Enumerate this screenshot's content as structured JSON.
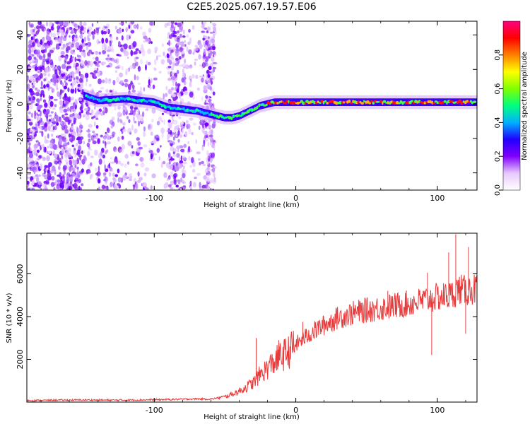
{
  "title": "C2E5.2025.067.19.57.E06",
  "colors": {
    "snr_line": "#e83a3a",
    "accent": "#7f00ff"
  },
  "chart_data": [
    {
      "type": "heatmap",
      "xlabel": "Height of straight line (km)",
      "ylabel": "Frequency (Hz)",
      "xlim": [
        -190,
        128
      ],
      "ylim": [
        -50,
        48
      ],
      "xticks": [
        -100,
        0,
        100
      ],
      "yticks": [
        -40,
        -20,
        0,
        20,
        40
      ],
      "colorbar": {
        "label": "Normalized spectral amplitude",
        "range": [
          0,
          1
        ],
        "ticks": [
          "0.0",
          "0.2",
          "0.4",
          "0.6",
          "0.8"
        ],
        "colormap": [
          "#ffffff",
          "#e7c9ff",
          "#8000ff",
          "#2000ff",
          "#00b0ff",
          "#00ff80",
          "#80ff00",
          "#ffff00",
          "#ff8000",
          "#ff0000",
          "#ff0080"
        ]
      },
      "ridge": {
        "x": [
          -150,
          -140,
          -120,
          -110,
          -100,
          -90,
          -80,
          -70,
          -60,
          -55,
          -50,
          -45,
          -40,
          -35,
          -30,
          -25,
          -20,
          -15,
          -10,
          -5,
          0,
          20,
          40,
          60,
          80,
          100,
          128
        ],
        "freq": [
          5,
          2,
          3,
          2,
          1,
          -2,
          -3,
          -4,
          -6,
          -7,
          -8,
          -8,
          -7,
          -5,
          -3,
          -1,
          0,
          1,
          1,
          1,
          1,
          1,
          1,
          1,
          1,
          1,
          1
        ]
      }
    },
    {
      "type": "line",
      "xlabel": "Height of straight line (km)",
      "ylabel": "SNR (10 * v/v)",
      "xlim": [
        -190,
        128
      ],
      "ylim": [
        0,
        7900
      ],
      "xticks": [
        -100,
        0,
        100
      ],
      "yticks": [
        2000,
        4000,
        6000
      ],
      "series": [
        {
          "x": [
            -190,
            -170,
            -150,
            -130,
            -110,
            -90,
            -70,
            -60,
            -50,
            -40,
            -30,
            -25,
            -20,
            -15,
            -10,
            -5,
            0,
            10,
            20,
            30,
            40,
            50,
            60,
            70,
            80,
            90,
            100,
            110,
            115,
            120,
            128
          ],
          "values": [
            70,
            90,
            100,
            90,
            100,
            120,
            150,
            140,
            250,
            500,
            900,
            1300,
            1600,
            1900,
            2150,
            2350,
            2700,
            3200,
            3600,
            3950,
            4150,
            4300,
            4400,
            4500,
            4600,
            4750,
            4900,
            5000,
            5300,
            5200,
            5300
          ]
        }
      ]
    }
  ],
  "spikes": [
    {
      "x": -28,
      "y": 3000
    },
    {
      "x": -12,
      "y": 2900
    },
    {
      "x": 5,
      "y": 3750
    },
    {
      "x": 65,
      "y": 5200
    },
    {
      "x": 93,
      "y": 6050
    },
    {
      "x": 108,
      "y": 7000
    },
    {
      "x": 113,
      "y": 7850
    },
    {
      "x": 122,
      "y": 7250
    },
    {
      "x": 96,
      "y": 2200
    },
    {
      "x": 120,
      "y": 3200
    }
  ]
}
